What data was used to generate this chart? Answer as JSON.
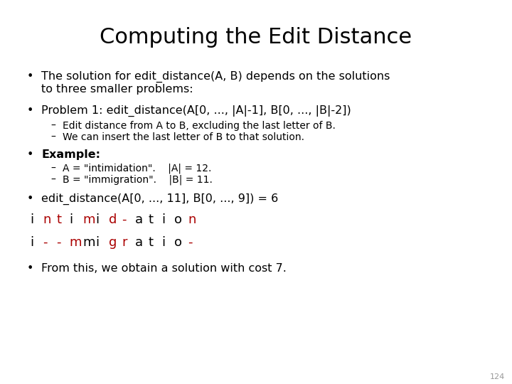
{
  "title": "Computing the Edit Distance",
  "background_color": "#ffffff",
  "text_color": "#000000",
  "red_color": "#aa0000",
  "title_fontsize": 22,
  "body_fontsize": 11.5,
  "small_fontsize": 10,
  "mono_fontsize": 13,
  "slide_number": "124",
  "bullet1_line1": "The solution for edit_distance(A, B) depends on the solutions",
  "bullet1_line2": "to three smaller problems:",
  "bullet2": "Problem 1: edit_distance(A[0, ..., |A|-1], B[0, ..., |B|-2])",
  "dash1": "Edit distance from A to B, excluding the last letter of B.",
  "dash2": "We can insert the last letter of B to that solution.",
  "example_label": "Example:",
  "dashA": "A = \"intimidation\".    |A| = 12.",
  "dashB": "B = \"immigration\".    |B| = 11.",
  "bullet4": "edit_distance(A[0, ..., 11], B[0, ..., 9]) = 6",
  "line1_chars": [
    "i",
    "n",
    "t",
    "i",
    "m",
    "i",
    "d",
    "-",
    "a",
    "t",
    "i",
    "o",
    "n"
  ],
  "line1_colors": [
    "black",
    "red",
    "red",
    "black",
    "red",
    "black",
    "red",
    "red",
    "black",
    "black",
    "black",
    "black",
    "red"
  ],
  "line2_chars": [
    "i",
    "-",
    "-",
    "m",
    "m",
    "i",
    "g",
    "r",
    "a",
    "t",
    "i",
    "o",
    "-"
  ],
  "line2_colors": [
    "black",
    "red",
    "red",
    "red",
    "black",
    "black",
    "red",
    "red",
    "black",
    "black",
    "black",
    "black",
    "red"
  ],
  "bullet5": "From this, we obtain a solution with cost 7."
}
